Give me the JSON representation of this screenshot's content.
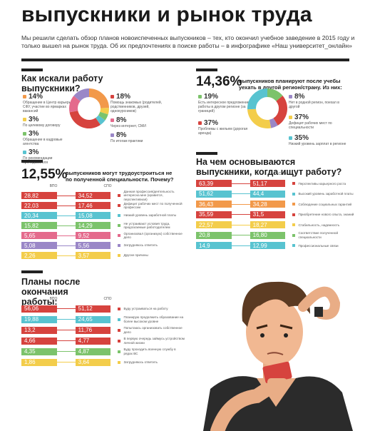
{
  "title": "выпускники и рынок труда",
  "intro": "Мы решили сделать обзор планов новоиспеченных выпускников – тех, кто окончил учебное заведение в 2015 году и только вышел на рынок труда. Об их предпочтениях в поиске работы – в инфографике «Наш университет_онлайн»",
  "colors": {
    "red": "#d6433e",
    "orange": "#f2994a",
    "teal": "#58c3d0",
    "green": "#7cc36b",
    "pink": "#e46a8c",
    "yellow": "#f3cd4b",
    "purple": "#9a87c7",
    "gray": "#9c9c9c",
    "dark": "#222222"
  },
  "search": {
    "heading": "Как искали работу выпускники?",
    "items": [
      {
        "pct": "14%",
        "text": "Обращение в Центр карьеры СФУ, участие во ярмарках вакансий",
        "color": "#f2994a"
      },
      {
        "pct": "3%",
        "text": "По целевому договору",
        "color": "#f3cd4b"
      },
      {
        "pct": "3%",
        "text": "Обращение в кадровые агентства",
        "color": "#7cc36b"
      },
      {
        "pct": "3%",
        "text": "По рекомендации преподавателя",
        "color": "#58c3d0"
      },
      {
        "pct": "18%",
        "text": "Помощь знакомых (родителей, родственников, друзей, однокурсников)",
        "color": "#d6433e"
      },
      {
        "pct": "8%",
        "text": "Через интернет, СМИ",
        "color": "#e46a8c"
      },
      {
        "pct": "8%",
        "text": "По итогам практики",
        "color": "#9a87c7"
      }
    ],
    "donut": [
      14,
      3,
      3,
      3,
      18,
      8,
      8
    ]
  },
  "move": {
    "big": "14,36%",
    "heading": "выпускников планируют после учебы уехать в другой регион/страну. Из них:",
    "items": [
      {
        "pct": "19%",
        "text": "Есть интересное предложение работы в другом регионе (за границей)",
        "color": "#7cc36b"
      },
      {
        "pct": "37%",
        "text": "Проблемы с жильем (дорогая аренда)",
        "color": "#d6433e"
      },
      {
        "pct": "8%",
        "text": "Нет в родной регион, поехал в другой",
        "color": "#9a87c7"
      },
      {
        "pct": "37%",
        "text": "Дефицит рабочих мест по специальности",
        "color": "#f3cd4b"
      },
      {
        "pct": "35%",
        "text": "Низкий уровень зарплат в регионе",
        "color": "#58c3d0"
      }
    ],
    "donut": [
      19,
      37,
      8,
      37,
      35
    ]
  },
  "nonspec": {
    "big": "12,55%",
    "heading": "выпускников могут трудоустроиться не по полученной специальности. Почему?",
    "col_a": "ВПО",
    "col_b": "СПО",
    "rows": [
      {
        "a": "28,82",
        "b": "34,52",
        "label": "Данная профессия/деятельность интересна мне (нравится, перспективная)",
        "color": "#d6433e"
      },
      {
        "a": "22,03",
        "b": "17,46",
        "label": "Дефицит рабочих мест по полученной профессии",
        "color": "#d6433e"
      },
      {
        "a": "20,34",
        "b": "15,08",
        "label": "Низкий уровень заработной платы",
        "color": "#58c3d0"
      },
      {
        "a": "15,82",
        "b": "14,29",
        "label": "Не устраивают условия труда, предлагаемые работодателем",
        "color": "#7cc36b"
      },
      {
        "a": "5,65",
        "b": "9,52",
        "label": "Организовал (организую) собственное дело",
        "color": "#e46a8c"
      },
      {
        "a": "5,08",
        "b": "5,56",
        "label": "Затрудняюсь ответить",
        "color": "#9a87c7"
      },
      {
        "a": "2,26",
        "b": "3,57",
        "label": "Другие причины",
        "color": "#f3cd4b"
      }
    ]
  },
  "base": {
    "heading": "На чем основываются выпускники, когда ищут работу?",
    "col_a": "ВПО",
    "col_b": "СПО",
    "rows": [
      {
        "a": "63,39",
        "b": "51,17",
        "label": "Перспективы карьерного роста",
        "color": "#d6433e"
      },
      {
        "a": "51,62",
        "b": "44,4",
        "label": "Высокий уровень заработной платы",
        "color": "#58c3d0"
      },
      {
        "a": "36,43",
        "b": "34,28",
        "label": "Соблюдение социальных гарантий",
        "color": "#f2994a"
      },
      {
        "a": "35,59",
        "b": "31,5",
        "label": "Приобретение нового опыта, знаний",
        "color": "#d6433e"
      },
      {
        "a": "22,57",
        "b": "18,27",
        "label": "Стабильность, надежность",
        "color": "#f3cd4b"
      },
      {
        "a": "20,8",
        "b": "16,80",
        "label": "Соответствие полученной специальности",
        "color": "#7cc36b"
      },
      {
        "a": "14,9",
        "b": "12,99",
        "label": "Профессиональные связи",
        "color": "#58c3d0"
      }
    ]
  },
  "plans": {
    "heading": "Планы после окончания работы:",
    "col_a": "ВПО",
    "col_b": "СПО",
    "rows": [
      {
        "a": "56,06",
        "b": "51,12",
        "label": "Буду устраиваться на работу",
        "color": "#d6433e"
      },
      {
        "a": "19,88",
        "b": "24,65",
        "label": "Планирую продолжить образование на более высоком уровне",
        "color": "#58c3d0"
      },
      {
        "a": "13,2",
        "b": "11,76",
        "label": "Попытаюсь организовать собственное дело",
        "color": "#d6433e"
      },
      {
        "a": "4,66",
        "b": "4,77",
        "label": "В первую очередь займусь устройством личной жизни",
        "color": "#d6433e"
      },
      {
        "a": "4,35",
        "b": "4,87",
        "label": "Буду проходить военную службу в рядах ВС",
        "color": "#7cc36b"
      },
      {
        "a": "1,86",
        "b": "3,64",
        "label": "Затрудняюсь ответить",
        "color": "#f3cd4b"
      }
    ]
  }
}
